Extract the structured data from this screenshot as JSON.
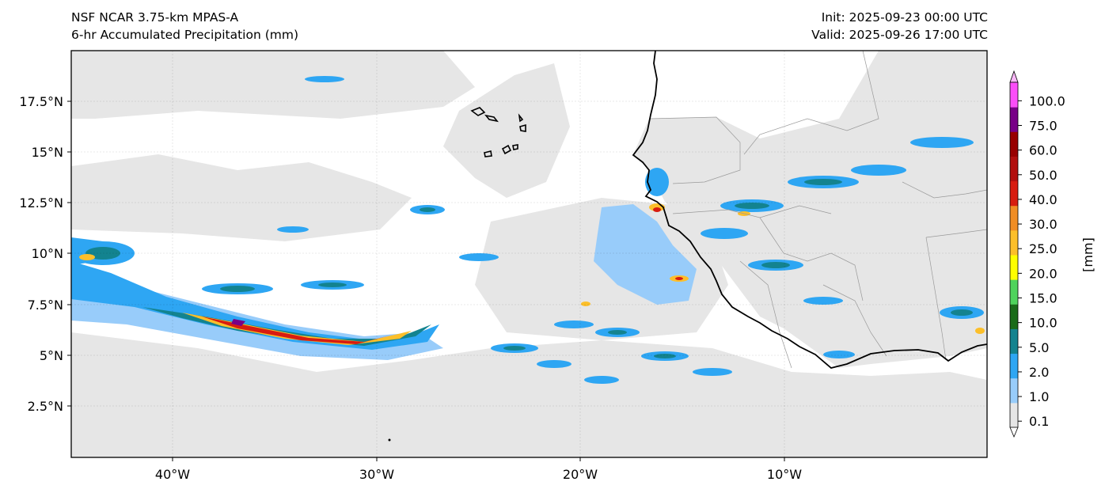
{
  "header": {
    "model": "NSF NCAR 3.75-km MPAS-A",
    "product": "6-hr Accumulated Precipitation (mm)",
    "init": "Init: 2025-09-23 00:00 UTC",
    "valid": "Valid: 2025-09-26 17:00 UTC"
  },
  "map": {
    "lat_ticks": [
      "17.5°N",
      "15°N",
      "12.5°N",
      "10°N",
      "7.5°N",
      "5°N",
      "2.5°N"
    ],
    "lon_ticks": [
      "40°W",
      "30°W",
      "20°W",
      "10°W"
    ],
    "gridlines": true,
    "features": [
      "West African coastline",
      "Cape Verde islands",
      "country borders"
    ]
  },
  "colorbar": {
    "unit_label": "[mm]",
    "levels": [
      "0.1",
      "1.0",
      "2.0",
      "5.0",
      "10.0",
      "15.0",
      "20.0",
      "25.0",
      "30.0",
      "40.0",
      "50.0",
      "60.0",
      "75.0",
      "100.0"
    ],
    "colors": [
      "#e6e6e6",
      "#98ccfa",
      "#2ea6f3",
      "#13838f",
      "#1a6b19",
      "#4fd35c",
      "#ffff00",
      "#fcbf2a",
      "#f08d25",
      "#d71c10",
      "#b20f0e",
      "#980000",
      "#780087",
      "#fb4ef9"
    ]
  }
}
